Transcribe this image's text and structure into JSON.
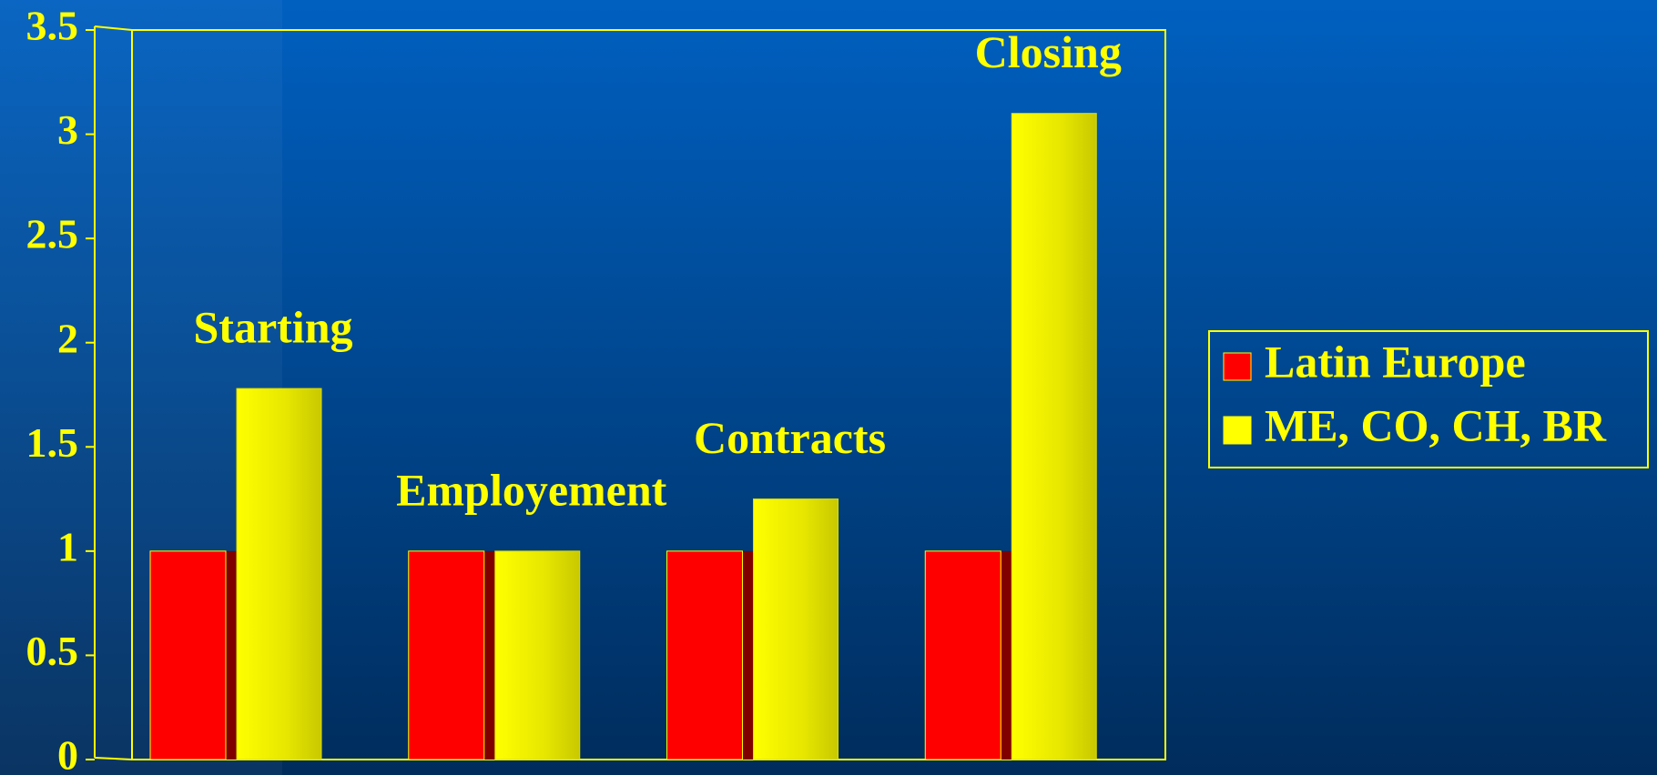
{
  "chart_data": {
    "type": "bar",
    "categories": [
      "Starting",
      "Employement",
      "Contracts",
      "Closing"
    ],
    "series": [
      {
        "name": "Latin Europe",
        "color": "#ff0000",
        "values": [
          1,
          1,
          1,
          1
        ]
      },
      {
        "name": "ME, CO, CH, BR",
        "color": "#ffff00",
        "values": [
          1.78,
          1.0,
          1.25,
          3.1
        ]
      }
    ],
    "ylim": [
      0,
      3.5
    ],
    "yticks": [
      0,
      0.5,
      1,
      1.5,
      2,
      2.5,
      3,
      3.5
    ],
    "legend": "right"
  }
}
